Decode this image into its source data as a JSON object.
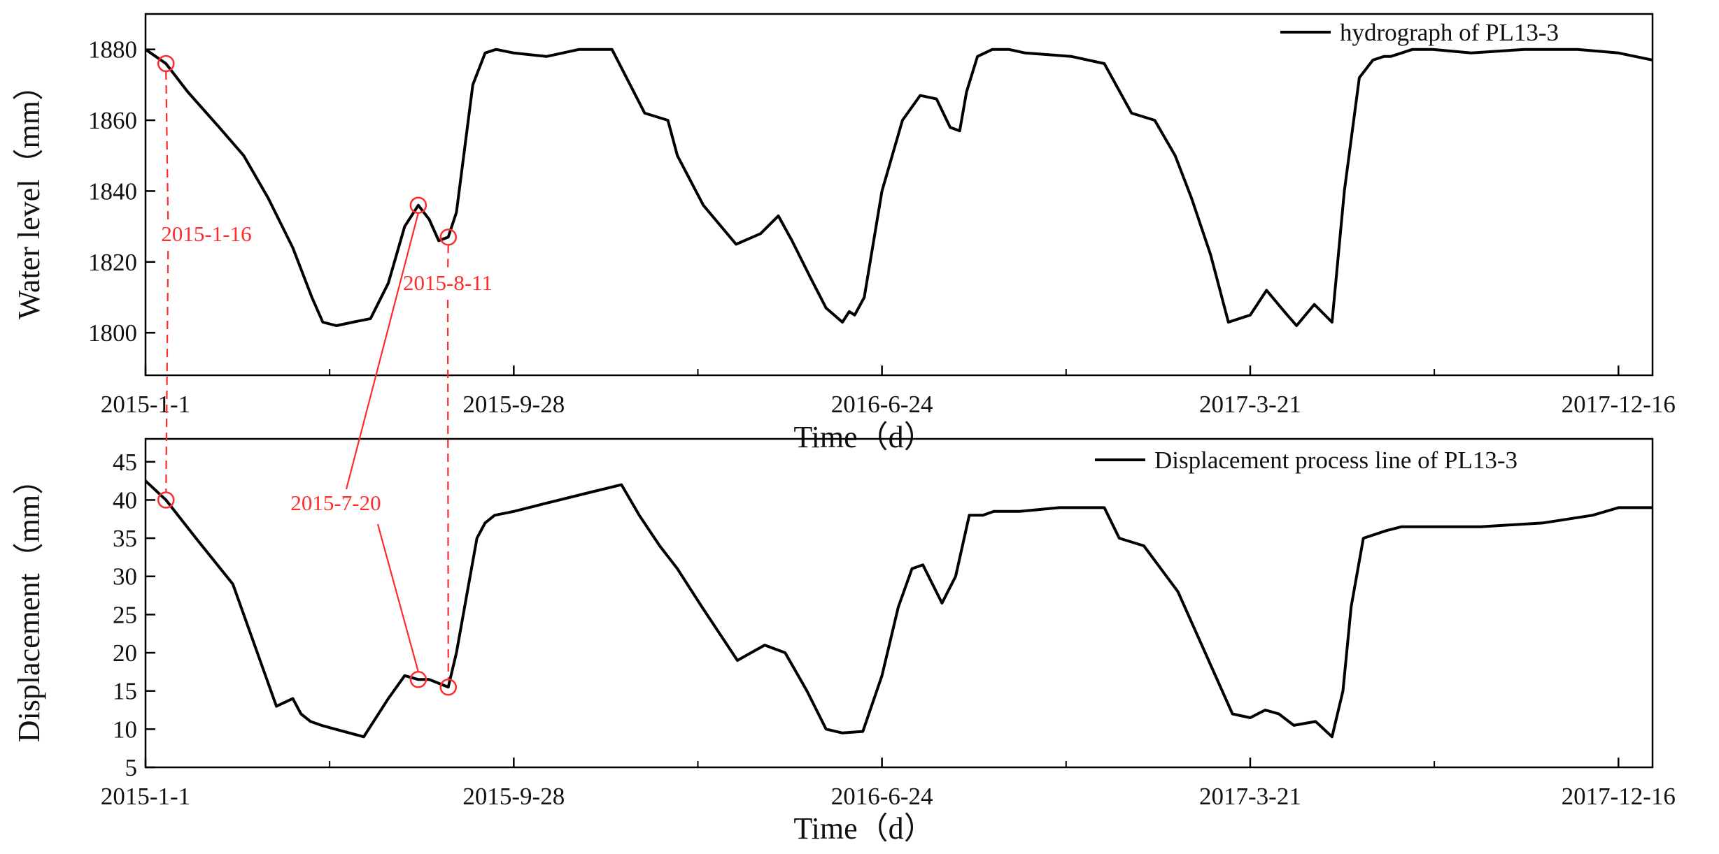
{
  "chart_data": [
    {
      "type": "line",
      "ylabel": "Water level（mm）",
      "xlabel": "Time（d）",
      "legend": "top-right",
      "grid": false,
      "x_ticks": [
        "2015-1-1",
        "2015-9-28",
        "2016-6-24",
        "2017-3-21",
        "2017-12-16"
      ],
      "x_range": [
        "2015-1-1",
        "2018-1-10"
      ],
      "ylim": [
        1788,
        1890
      ],
      "y_ticks": [
        1800,
        1820,
        1840,
        1860,
        1880
      ],
      "series": [
        {
          "name": "hydrograph of PL13-3",
          "color": "#000000",
          "x": [
            "2015-1-1",
            "2015-1-16",
            "2015-2-1",
            "2015-2-24",
            "2015-3-14",
            "2015-4-1",
            "2015-4-19",
            "2015-5-3",
            "2015-5-11",
            "2015-5-21",
            "2015-6-2",
            "2015-6-15",
            "2015-6-28",
            "2015-7-10",
            "2015-7-20",
            "2015-7-28",
            "2015-8-4",
            "2015-8-11",
            "2015-8-17",
            "2015-8-23",
            "2015-8-29",
            "2015-9-7",
            "2015-9-15",
            "2015-9-28",
            "2015-10-22",
            "2015-11-15",
            "2015-12-9",
            "2016-1-2",
            "2016-1-19",
            "2016-1-26",
            "2016-2-14",
            "2016-3-9",
            "2016-3-27",
            "2016-4-9",
            "2016-4-19",
            "2016-5-2",
            "2016-5-14",
            "2016-5-26",
            "2016-5-31",
            "2016-6-4",
            "2016-6-11",
            "2016-6-24",
            "2016-7-9",
            "2016-7-22",
            "2016-8-3",
            "2016-8-13",
            "2016-8-20",
            "2016-8-25",
            "2016-9-2",
            "2016-9-13",
            "2016-9-25",
            "2016-10-7",
            "2016-11-10",
            "2016-12-4",
            "2016-12-24",
            "2017-1-10",
            "2017-1-25",
            "2017-2-6",
            "2017-2-20",
            "2017-3-5",
            "2017-3-21",
            "2017-4-2",
            "2017-4-15",
            "2017-4-24",
            "2017-5-7",
            "2017-5-20",
            "2017-5-29",
            "2017-6-9",
            "2017-6-19",
            "2017-6-27",
            "2017-7-2",
            "2017-7-10",
            "2017-7-18",
            "2017-8-2",
            "2017-8-30",
            "2017-10-8",
            "2017-11-16",
            "2017-12-16",
            "2018-1-10"
          ],
          "y": [
            1880,
            1876,
            1868,
            1858,
            1850,
            1838,
            1824,
            1810,
            1803,
            1802,
            1803,
            1804,
            1814,
            1830,
            1836,
            1832,
            1826,
            1827,
            1834,
            1852,
            1870,
            1879,
            1880,
            1879,
            1878,
            1880,
            1880,
            1862,
            1860,
            1850,
            1836,
            1825,
            1828,
            1833,
            1826,
            1816,
            1807,
            1803,
            1806,
            1805,
            1810,
            1840,
            1860,
            1867,
            1866,
            1858,
            1857,
            1868,
            1878,
            1880,
            1880,
            1879,
            1878,
            1876,
            1862,
            1860,
            1850,
            1838,
            1822,
            1803,
            1805,
            1812,
            1806,
            1802,
            1808,
            1803,
            1840,
            1872,
            1877,
            1878,
            1878,
            1879,
            1880,
            1880,
            1879,
            1880,
            1880,
            1879,
            1877
          ]
        }
      ]
    },
    {
      "type": "line",
      "ylabel": "Displacement（mm）",
      "xlabel": "Time（d）",
      "legend": "top-right",
      "grid": false,
      "x_ticks": [
        "2015-1-1",
        "2015-9-28",
        "2016-6-24",
        "2017-3-21",
        "2017-12-16"
      ],
      "x_range": [
        "2015-1-1",
        "2018-1-10"
      ],
      "ylim": [
        5,
        48
      ],
      "y_ticks": [
        5,
        10,
        15,
        20,
        25,
        30,
        35,
        40,
        45
      ],
      "series": [
        {
          "name": "Displacement process line of PL13-3",
          "color": "#000000",
          "x": [
            "2015-1-1",
            "2015-1-16",
            "2015-2-7",
            "2015-3-6",
            "2015-3-24",
            "2015-4-7",
            "2015-4-19",
            "2015-4-25",
            "2015-5-2",
            "2015-5-10",
            "2015-5-20",
            "2015-6-10",
            "2015-6-28",
            "2015-7-10",
            "2015-7-20",
            "2015-7-28",
            "2015-8-11",
            "2015-8-17",
            "2015-8-25",
            "2015-9-1",
            "2015-9-7",
            "2015-9-14",
            "2015-9-28",
            "2015-10-20",
            "2015-11-23",
            "2015-12-16",
            "2015-12-29",
            "2016-1-13",
            "2016-1-26",
            "2016-2-13",
            "2016-3-10",
            "2016-3-20",
            "2016-3-30",
            "2016-4-14",
            "2016-4-30",
            "2016-5-14",
            "2016-5-26",
            "2016-6-10",
            "2016-6-24",
            "2016-7-6",
            "2016-7-16",
            "2016-7-24",
            "2016-8-7",
            "2016-8-17",
            "2016-8-27",
            "2016-9-6",
            "2016-9-14",
            "2016-10-3",
            "2016-11-1",
            "2016-12-4",
            "2016-12-15",
            "2017-1-2",
            "2017-1-27",
            "2017-2-16",
            "2017-3-8",
            "2017-3-21",
            "2017-4-1",
            "2017-4-11",
            "2017-4-22",
            "2017-5-8",
            "2017-5-20",
            "2017-5-28",
            "2017-6-3",
            "2017-6-12",
            "2017-6-29",
            "2017-7-10",
            "2017-8-5",
            "2017-9-6",
            "2017-10-22",
            "2017-11-27",
            "2017-12-16",
            "2018-1-10"
          ],
          "y": [
            42.5,
            40,
            35,
            29,
            20,
            13,
            14,
            12,
            11,
            10.5,
            10,
            9,
            14,
            17,
            16.5,
            16.5,
            15.5,
            20,
            28,
            35,
            37,
            38,
            38.5,
            39.5,
            41,
            42,
            38,
            34,
            31,
            26,
            19,
            20,
            21,
            20,
            15,
            10,
            9.5,
            9.7,
            17,
            26,
            31,
            31.5,
            26.5,
            30,
            38,
            38,
            38.5,
            38.5,
            39,
            39,
            35,
            34,
            28,
            20,
            12,
            11.5,
            12.5,
            12,
            10.5,
            11,
            9,
            15,
            26,
            35,
            36,
            36.5,
            36.5,
            36.5,
            37,
            38,
            39,
            39
          ]
        }
      ]
    }
  ],
  "annotations": {
    "color": "#ff2a2a",
    "items": [
      {
        "id": "ann-jan16",
        "label": "2015-1-16",
        "date": "2015-1-16",
        "water_level": 1876,
        "displacement": 40
      },
      {
        "id": "ann-jul20",
        "label": "2015-7-20",
        "date": "2015-7-20",
        "water_level": 1836,
        "displacement": 16.5
      },
      {
        "id": "ann-aug11",
        "label": "2015-8-11",
        "date": "2015-8-11",
        "water_level": 1827,
        "displacement": 15.5
      }
    ]
  }
}
